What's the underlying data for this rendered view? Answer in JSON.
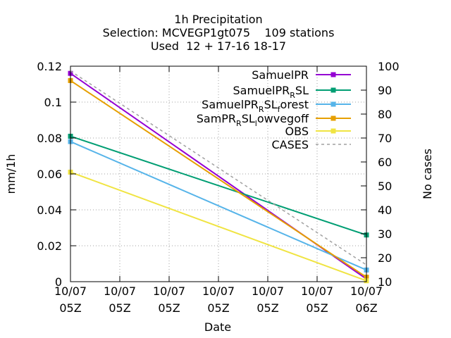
{
  "chart_data": {
    "type": "line",
    "title": [
      "1h Precipitation",
      "Selection: MCVEGP1gt075    109 stations",
      "Used  12 + 17-16 18-17"
    ],
    "xlabel": "Date",
    "ylabel": "mm/1h",
    "y2label": "No cases",
    "x_ticks": [
      {
        "line1": "10/07",
        "line2": "05Z"
      },
      {
        "line1": "10/07",
        "line2": "05Z"
      },
      {
        "line1": "10/07",
        "line2": "05Z"
      },
      {
        "line1": "10/07",
        "line2": "05Z"
      },
      {
        "line1": "10/07",
        "line2": "05Z"
      },
      {
        "line1": "10/07",
        "line2": "05Z"
      },
      {
        "line1": "10/07",
        "line2": "06Z"
      }
    ],
    "x_range": [
      0,
      1
    ],
    "ylim": [
      0,
      0.12
    ],
    "y_ticks": [
      "0",
      "0.02",
      "0.04",
      "0.06",
      "0.08",
      "0.1",
      "0.12"
    ],
    "y2lim": [
      10,
      100
    ],
    "y2_ticks": [
      "10",
      "20",
      "30",
      "40",
      "50",
      "60",
      "70",
      "80",
      "90",
      "100"
    ],
    "grid": true,
    "legend_position": "top-right",
    "series": [
      {
        "name": "SamuelPR",
        "name_base": "SamuelPR",
        "name_sub": "",
        "name_rest": "",
        "color": "#9400d3",
        "marker": "square",
        "axis": "y",
        "x": [
          0,
          1
        ],
        "values": [
          0.116,
          0.0015
        ]
      },
      {
        "name": "SamuelPR_RSL",
        "name_base": "SamuelPR",
        "name_sub": "R",
        "name_rest": "SL",
        "color": "#009e73",
        "marker": "square",
        "axis": "y",
        "x": [
          0,
          1
        ],
        "values": [
          0.081,
          0.026
        ]
      },
      {
        "name": "SamuelPR_RSL_forest",
        "name_base": "SamuelPR",
        "name_sub": "R",
        "name_rest": "SL",
        "name_sub2": "f",
        "name_rest2": "orest",
        "color": "#56b4e9",
        "marker": "square",
        "axis": "y",
        "x": [
          0,
          1
        ],
        "values": [
          0.078,
          0.0065
        ]
      },
      {
        "name": "SamPR_RSL_lowvegoff",
        "name_base": "SamPR",
        "name_sub": "R",
        "name_rest": "SL",
        "name_sub2": "l",
        "name_rest2": "owvegoff",
        "color": "#e69f00",
        "marker": "square",
        "axis": "y",
        "x": [
          0,
          1
        ],
        "values": [
          0.112,
          0.0025
        ]
      },
      {
        "name": "OBS",
        "name_base": "OBS",
        "name_sub": "",
        "name_rest": "",
        "color": "#f0e442",
        "marker": "square",
        "axis": "y",
        "x": [
          0,
          1
        ],
        "values": [
          0.061,
          0.0005
        ]
      },
      {
        "name": "CASES",
        "name_base": "CASES",
        "name_sub": "",
        "name_rest": "",
        "color": "#a0a0a0",
        "marker": "none",
        "dashed": true,
        "axis": "y2",
        "x": [
          0,
          1
        ],
        "values": [
          98,
          17
        ]
      }
    ]
  }
}
